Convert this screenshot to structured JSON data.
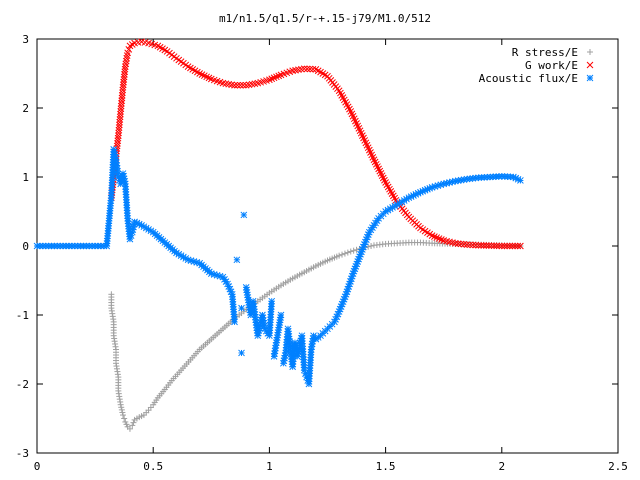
{
  "chart_data": {
    "type": "scatter",
    "title": "m1/n1.5/q1.5/r-+.15-j79/M1.0/512",
    "xlabel": "",
    "ylabel": "",
    "xlim": [
      0,
      2.5
    ],
    "ylim": [
      -3,
      3
    ],
    "x_ticks": [
      "0",
      "0.5",
      "1",
      "1.5",
      "2",
      "2.5"
    ],
    "y_ticks": [
      "-3",
      "-2",
      "-1",
      "0",
      "1",
      "2",
      "3"
    ],
    "grid": false,
    "legend_position": "top-right",
    "series": [
      {
        "name": "R stress/E",
        "marker": "plus",
        "color": "#a0a0a0",
        "points": [
          [
            0.32,
            -0.7
          ],
          [
            0.32,
            -0.9
          ],
          [
            0.33,
            -1.1
          ],
          [
            0.33,
            -1.3
          ],
          [
            0.34,
            -1.5
          ],
          [
            0.34,
            -1.7
          ],
          [
            0.35,
            -1.9
          ],
          [
            0.35,
            -2.1
          ],
          [
            0.36,
            -2.3
          ],
          [
            0.37,
            -2.45
          ],
          [
            0.38,
            -2.55
          ],
          [
            0.39,
            -2.62
          ],
          [
            0.4,
            -2.65
          ],
          [
            0.41,
            -2.6
          ],
          [
            0.42,
            -2.52
          ],
          [
            0.44,
            -2.48
          ],
          [
            0.46,
            -2.45
          ],
          [
            0.48,
            -2.38
          ],
          [
            0.5,
            -2.3
          ],
          [
            0.52,
            -2.2
          ],
          [
            0.55,
            -2.08
          ],
          [
            0.58,
            -1.95
          ],
          [
            0.62,
            -1.8
          ],
          [
            0.66,
            -1.65
          ],
          [
            0.7,
            -1.5
          ],
          [
            0.75,
            -1.35
          ],
          [
            0.8,
            -1.2
          ],
          [
            0.85,
            -1.05
          ],
          [
            0.9,
            -0.92
          ],
          [
            0.95,
            -0.8
          ],
          [
            1.0,
            -0.68
          ],
          [
            1.05,
            -0.57
          ],
          [
            1.1,
            -0.47
          ],
          [
            1.15,
            -0.38
          ],
          [
            1.2,
            -0.29
          ],
          [
            1.25,
            -0.21
          ],
          [
            1.3,
            -0.14
          ],
          [
            1.35,
            -0.08
          ],
          [
            1.4,
            -0.03
          ],
          [
            1.45,
            0.01
          ],
          [
            1.5,
            0.03
          ],
          [
            1.55,
            0.04
          ],
          [
            1.6,
            0.05
          ],
          [
            1.65,
            0.05
          ],
          [
            1.7,
            0.04
          ],
          [
            1.8,
            0.03
          ],
          [
            1.9,
            0.02
          ],
          [
            2.0,
            0.01
          ],
          [
            2.08,
            0.0
          ]
        ]
      },
      {
        "name": "G work/E",
        "marker": "cross",
        "color": "#ff0000",
        "points": [
          [
            0.32,
            0.7
          ],
          [
            0.33,
            1.0
          ],
          [
            0.34,
            1.3
          ],
          [
            0.35,
            1.6
          ],
          [
            0.36,
            1.95
          ],
          [
            0.37,
            2.3
          ],
          [
            0.38,
            2.6
          ],
          [
            0.39,
            2.8
          ],
          [
            0.4,
            2.9
          ],
          [
            0.42,
            2.94
          ],
          [
            0.45,
            2.96
          ],
          [
            0.48,
            2.94
          ],
          [
            0.52,
            2.9
          ],
          [
            0.56,
            2.82
          ],
          [
            0.6,
            2.72
          ],
          [
            0.65,
            2.6
          ],
          [
            0.7,
            2.5
          ],
          [
            0.75,
            2.42
          ],
          [
            0.8,
            2.36
          ],
          [
            0.85,
            2.33
          ],
          [
            0.9,
            2.33
          ],
          [
            0.95,
            2.36
          ],
          [
            1.0,
            2.41
          ],
          [
            1.05,
            2.48
          ],
          [
            1.1,
            2.54
          ],
          [
            1.15,
            2.57
          ],
          [
            1.2,
            2.56
          ],
          [
            1.25,
            2.46
          ],
          [
            1.3,
            2.25
          ],
          [
            1.35,
            1.95
          ],
          [
            1.4,
            1.6
          ],
          [
            1.45,
            1.25
          ],
          [
            1.5,
            0.92
          ],
          [
            1.55,
            0.63
          ],
          [
            1.6,
            0.42
          ],
          [
            1.65,
            0.26
          ],
          [
            1.7,
            0.15
          ],
          [
            1.75,
            0.08
          ],
          [
            1.8,
            0.04
          ],
          [
            1.85,
            0.02
          ],
          [
            1.9,
            0.01
          ],
          [
            2.0,
            0.0
          ],
          [
            2.08,
            0.0
          ]
        ]
      },
      {
        "name": "Acoustic flux/E",
        "marker": "star",
        "color": "#0080ff",
        "points": [
          [
            0.0,
            0.0
          ],
          [
            0.05,
            0.0
          ],
          [
            0.1,
            0.0
          ],
          [
            0.15,
            0.0
          ],
          [
            0.2,
            0.0
          ],
          [
            0.25,
            0.0
          ],
          [
            0.3,
            0.0
          ],
          [
            0.32,
            0.73
          ],
          [
            0.33,
            1.4
          ],
          [
            0.34,
            1.25
          ],
          [
            0.35,
            1.0
          ],
          [
            0.36,
            0.9
          ],
          [
            0.37,
            1.05
          ],
          [
            0.38,
            0.9
          ],
          [
            0.39,
            0.4
          ],
          [
            0.4,
            0.1
          ],
          [
            0.41,
            0.2
          ],
          [
            0.42,
            0.35
          ],
          [
            0.45,
            0.3
          ],
          [
            0.5,
            0.2
          ],
          [
            0.55,
            0.05
          ],
          [
            0.6,
            -0.1
          ],
          [
            0.65,
            -0.2
          ],
          [
            0.7,
            -0.25
          ],
          [
            0.75,
            -0.4
          ],
          [
            0.8,
            -0.45
          ],
          [
            0.82,
            -0.55
          ],
          [
            0.84,
            -0.7
          ],
          [
            0.85,
            -1.1
          ],
          [
            0.86,
            -0.2
          ],
          [
            0.88,
            -0.9
          ],
          [
            0.88,
            -1.55
          ],
          [
            0.89,
            0.45
          ],
          [
            0.9,
            -0.6
          ],
          [
            0.92,
            -1.0
          ],
          [
            0.93,
            -0.8
          ],
          [
            0.95,
            -1.3
          ],
          [
            0.97,
            -1.0
          ],
          [
            0.98,
            -1.2
          ],
          [
            1.0,
            -1.3
          ],
          [
            1.01,
            -0.8
          ],
          [
            1.02,
            -1.6
          ],
          [
            1.03,
            -1.4
          ],
          [
            1.05,
            -1.0
          ],
          [
            1.06,
            -1.7
          ],
          [
            1.07,
            -1.55
          ],
          [
            1.08,
            -1.2
          ],
          [
            1.1,
            -1.75
          ],
          [
            1.11,
            -1.4
          ],
          [
            1.12,
            -1.6
          ],
          [
            1.14,
            -1.3
          ],
          [
            1.15,
            -1.8
          ],
          [
            1.16,
            -1.9
          ],
          [
            1.17,
            -2.0
          ],
          [
            1.18,
            -1.5
          ],
          [
            1.19,
            -1.3
          ],
          [
            1.2,
            -1.35
          ],
          [
            1.22,
            -1.3
          ],
          [
            1.25,
            -1.2
          ],
          [
            1.28,
            -1.1
          ],
          [
            1.3,
            -0.95
          ],
          [
            1.33,
            -0.7
          ],
          [
            1.36,
            -0.4
          ],
          [
            1.4,
            -0.05
          ],
          [
            1.43,
            0.2
          ],
          [
            1.47,
            0.4
          ],
          [
            1.5,
            0.5
          ],
          [
            1.55,
            0.6
          ],
          [
            1.6,
            0.7
          ],
          [
            1.65,
            0.78
          ],
          [
            1.7,
            0.85
          ],
          [
            1.75,
            0.9
          ],
          [
            1.8,
            0.94
          ],
          [
            1.85,
            0.97
          ],
          [
            1.9,
            0.99
          ],
          [
            1.95,
            1.0
          ],
          [
            2.0,
            1.01
          ],
          [
            2.05,
            1.0
          ],
          [
            2.08,
            0.95
          ]
        ]
      }
    ]
  }
}
